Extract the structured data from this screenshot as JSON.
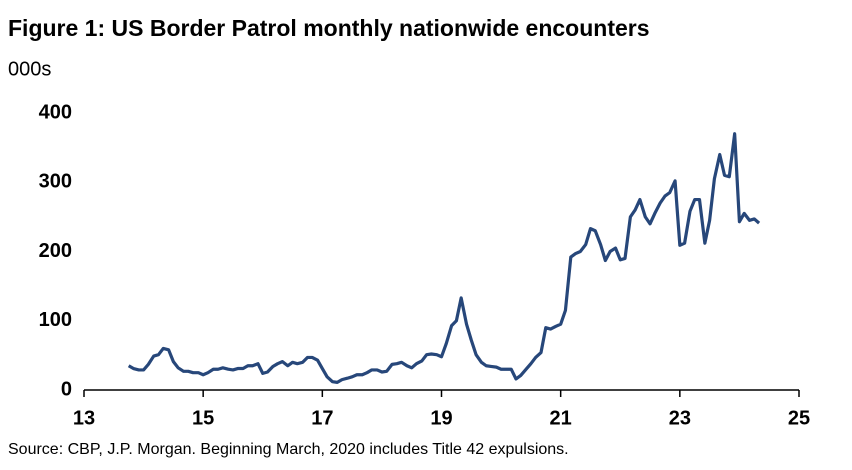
{
  "chart_data": {
    "type": "line",
    "title": "Figure 1: US Border Patrol monthly nationwide encounters",
    "subtitle": "000s",
    "note": "Source: CBP, J.P. Morgan.  Beginning March, 2020 includes Title 42 expulsions.",
    "x": [
      13.75,
      13.83,
      13.92,
      14,
      14.08,
      14.17,
      14.25,
      14.33,
      14.42,
      14.5,
      14.58,
      14.67,
      14.75,
      14.83,
      14.92,
      15,
      15.08,
      15.17,
      15.25,
      15.33,
      15.42,
      15.5,
      15.58,
      15.67,
      15.75,
      15.83,
      15.92,
      16,
      16.08,
      16.17,
      16.25,
      16.33,
      16.42,
      16.5,
      16.58,
      16.67,
      16.75,
      16.83,
      16.92,
      17,
      17.08,
      17.17,
      17.25,
      17.33,
      17.42,
      17.5,
      17.58,
      17.67,
      17.75,
      17.83,
      17.92,
      18,
      18.08,
      18.17,
      18.25,
      18.33,
      18.42,
      18.5,
      18.58,
      18.67,
      18.75,
      18.83,
      18.92,
      19,
      19.08,
      19.17,
      19.25,
      19.33,
      19.42,
      19.5,
      19.58,
      19.67,
      19.75,
      19.83,
      19.92,
      20,
      20.08,
      20.17,
      20.25,
      20.33,
      20.42,
      20.5,
      20.58,
      20.67,
      20.75,
      20.83,
      20.92,
      21,
      21.08,
      21.17,
      21.25,
      21.33,
      21.42,
      21.5,
      21.58,
      21.67,
      21.75,
      21.83,
      21.92,
      22,
      22.08,
      22.17,
      22.25,
      22.33,
      22.42,
      22.5,
      22.58,
      22.67,
      22.75,
      22.83,
      22.92,
      23,
      23.08,
      23.17,
      23.25,
      23.33,
      23.42,
      23.5,
      23.58,
      23.67,
      23.75,
      23.83,
      23.92,
      24,
      24.08,
      24.17,
      24.25,
      24.33
    ],
    "series": [
      {
        "name": "Encounters",
        "color": "#27477a",
        "values": [
          35,
          31,
          29,
          29,
          37,
          49,
          51,
          60,
          58,
          41,
          32,
          27,
          27,
          25,
          25,
          22,
          25,
          30,
          30,
          32,
          30,
          29,
          31,
          31,
          35,
          35,
          38,
          24,
          26,
          34,
          38,
          41,
          35,
          40,
          38,
          40,
          47,
          47,
          43,
          31,
          19,
          12,
          11,
          15,
          17,
          19,
          22,
          22,
          25,
          29,
          29,
          26,
          27,
          37,
          38,
          40,
          35,
          32,
          38,
          42,
          51,
          52,
          51,
          48,
          67,
          93,
          100,
          133,
          95,
          72,
          51,
          40,
          35,
          34,
          33,
          30,
          30,
          30,
          16,
          21,
          30,
          38,
          47,
          54,
          90,
          88,
          92,
          95,
          115,
          192,
          197,
          200,
          210,
          233,
          230,
          210,
          187,
          200,
          205,
          188,
          190,
          250,
          260,
          275,
          250,
          240,
          255,
          270,
          280,
          285,
          302,
          209,
          212,
          258,
          275,
          275,
          212,
          245,
          305,
          340,
          310,
          308,
          370,
          243,
          255,
          245,
          247,
          241
        ]
      }
    ],
    "xlim": [
      13,
      25
    ],
    "xticks": [
      13,
      15,
      17,
      19,
      21,
      23,
      25
    ],
    "ylim": [
      0,
      400
    ],
    "yticks": [
      0,
      100,
      200,
      300,
      400
    ],
    "grid": false
  }
}
